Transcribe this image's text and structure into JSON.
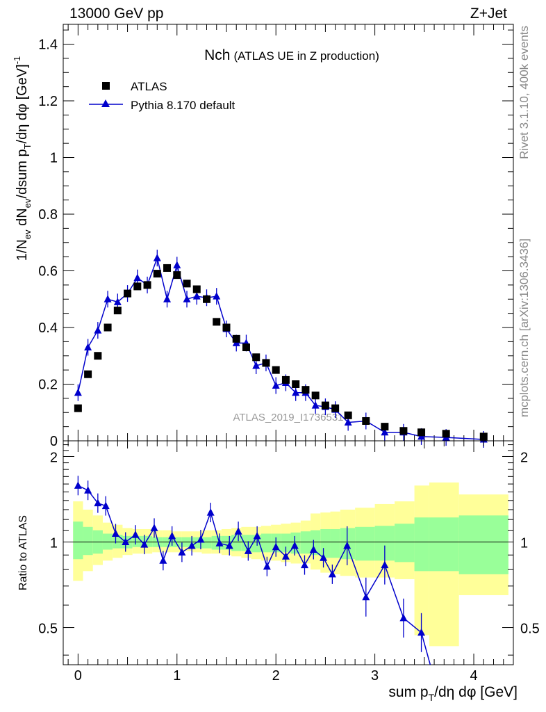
{
  "header": {
    "left": "13000 GeV pp",
    "right": "Z+Jet"
  },
  "side": {
    "rivet": "Rivet 3.1.10,  400k events",
    "mcplots": "mcplots.cern.ch [arXiv:1306.3436]"
  },
  "chart_data": [
    {
      "type": "scatter",
      "title": "Nch",
      "subtitle": "(ATLAS UE in Z production)",
      "analysis_id": "ATLAS_2019_I1736531",
      "ylabel_main": "1/N",
      "ylabel_sub1": "ev",
      "ylabel_mid": " dN",
      "ylabel_sub2": "ev",
      "ylabel_tail": "/dsum p",
      "ylabel_sub3": "T",
      "ylabel_end": "/dη dφ  [GeV]",
      "ylabel_sup": "-1",
      "xlim": [
        -0.15,
        4.4
      ],
      "ylim": [
        0,
        1.47
      ],
      "yticks": [
        0,
        0.2,
        0.4,
        0.6,
        0.8,
        1,
        1.2,
        1.4
      ],
      "ytick_labels": [
        "0",
        "0.2",
        "0.4",
        "0.6",
        "0.8",
        "1",
        "1.2",
        "1.4"
      ],
      "legend": {
        "position": "top-left",
        "entries": [
          "ATLAS",
          "Pythia 8.170 default"
        ]
      },
      "series": [
        {
          "name": "ATLAS",
          "marker": "square",
          "color": "#000000",
          "x": [
            0,
            0.1,
            0.2,
            0.3,
            0.4,
            0.5,
            0.6,
            0.7,
            0.8,
            0.9,
            1.0,
            1.1,
            1.2,
            1.3,
            1.4,
            1.5,
            1.6,
            1.7,
            1.8,
            1.9,
            2.0,
            2.1,
            2.2,
            2.3,
            2.4,
            2.5,
            2.6,
            2.73,
            2.91,
            3.1,
            3.29,
            3.47,
            3.72,
            4.1
          ],
          "y": [
            0.115,
            0.235,
            0.3,
            0.4,
            0.46,
            0.52,
            0.545,
            0.55,
            0.59,
            0.61,
            0.585,
            0.555,
            0.535,
            0.5,
            0.42,
            0.4,
            0.36,
            0.33,
            0.295,
            0.275,
            0.25,
            0.215,
            0.2,
            0.18,
            0.16,
            0.125,
            0.115,
            0.09,
            0.07,
            0.05,
            0.035,
            0.03,
            0.025,
            0.015
          ]
        },
        {
          "name": "Pythia 8.170 default",
          "marker": "triangle",
          "color": "#0000cc",
          "x": [
            0,
            0.1,
            0.2,
            0.3,
            0.4,
            0.5,
            0.6,
            0.7,
            0.8,
            0.9,
            1.0,
            1.1,
            1.2,
            1.3,
            1.4,
            1.5,
            1.6,
            1.7,
            1.8,
            1.9,
            2.0,
            2.1,
            2.2,
            2.3,
            2.4,
            2.5,
            2.6,
            2.73,
            2.91,
            3.1,
            3.29,
            3.47,
            3.72,
            4.1
          ],
          "y": [
            0.17,
            0.33,
            0.39,
            0.5,
            0.49,
            0.52,
            0.575,
            0.55,
            0.645,
            0.5,
            0.62,
            0.5,
            0.51,
            0.505,
            0.51,
            0.395,
            0.345,
            0.345,
            0.265,
            0.275,
            0.195,
            0.205,
            0.17,
            0.17,
            0.125,
            0.12,
            0.11,
            0.065,
            0.07,
            0.03,
            0.03,
            0.015,
            0.012,
            0.005
          ]
        }
      ]
    },
    {
      "type": "line",
      "ylabel": "Ratio to ATLAS",
      "xlabel": "sum p",
      "xlabel_sub": "T",
      "xlabel_tail": "/dη dφ [GeV]",
      "xlim": [
        -0.15,
        4.4
      ],
      "ylim": [
        0.37,
        2.27
      ],
      "xticks": [
        0,
        1,
        2,
        3,
        4
      ],
      "xtick_labels": [
        "0",
        "1",
        "2",
        "3",
        "4"
      ],
      "yticks": [
        0.5,
        1,
        2
      ],
      "ytick_labels": [
        "0.5",
        "1",
        "2"
      ],
      "bands": {
        "edges": [
          -0.05,
          0.05,
          0.15,
          0.25,
          0.35,
          0.45,
          0.55,
          0.65,
          0.75,
          0.85,
          0.95,
          1.05,
          1.15,
          1.25,
          1.35,
          1.45,
          1.55,
          1.65,
          1.75,
          1.85,
          1.95,
          2.05,
          2.15,
          2.25,
          2.35,
          2.45,
          2.55,
          2.65,
          2.8,
          3.0,
          3.2,
          3.4,
          3.55,
          3.85,
          4.35
        ],
        "green_lo": [
          0.87,
          0.9,
          0.91,
          0.94,
          0.95,
          0.95,
          0.96,
          0.96,
          0.96,
          0.96,
          0.96,
          0.96,
          0.95,
          0.95,
          0.94,
          0.94,
          0.93,
          0.93,
          0.92,
          0.92,
          0.92,
          0.92,
          0.91,
          0.91,
          0.9,
          0.88,
          0.88,
          0.87,
          0.86,
          0.86,
          0.85,
          0.79,
          0.79,
          0.77
        ],
        "green_hi": [
          1.18,
          1.13,
          1.1,
          1.07,
          1.06,
          1.05,
          1.05,
          1.05,
          1.04,
          1.04,
          1.04,
          1.04,
          1.04,
          1.04,
          1.05,
          1.05,
          1.06,
          1.06,
          1.06,
          1.07,
          1.07,
          1.07,
          1.08,
          1.09,
          1.1,
          1.11,
          1.11,
          1.12,
          1.13,
          1.14,
          1.16,
          1.22,
          1.22,
          1.24
        ],
        "yellow_lo": [
          0.73,
          0.79,
          0.83,
          0.86,
          0.88,
          0.9,
          0.91,
          0.91,
          0.92,
          0.92,
          0.92,
          0.93,
          0.92,
          0.91,
          0.91,
          0.9,
          0.89,
          0.88,
          0.87,
          0.86,
          0.86,
          0.85,
          0.84,
          0.84,
          0.8,
          0.78,
          0.77,
          0.76,
          0.75,
          0.75,
          0.74,
          0.47,
          0.43,
          0.65
        ],
        "yellow_hi": [
          1.39,
          1.3,
          1.24,
          1.17,
          1.15,
          1.12,
          1.11,
          1.11,
          1.1,
          1.1,
          1.09,
          1.09,
          1.09,
          1.1,
          1.1,
          1.11,
          1.12,
          1.13,
          1.13,
          1.14,
          1.15,
          1.16,
          1.17,
          1.19,
          1.26,
          1.27,
          1.28,
          1.3,
          1.32,
          1.36,
          1.39,
          1.58,
          1.62,
          1.47
        ]
      },
      "series": [
        {
          "name": "Pythia 8.170 default / ATLAS",
          "marker": "triangle",
          "color": "#0000cc",
          "x": [
            0,
            0.1,
            0.2,
            0.28,
            0.38,
            0.48,
            0.58,
            0.67,
            0.77,
            0.86,
            0.95,
            1.05,
            1.15,
            1.24,
            1.34,
            1.43,
            1.53,
            1.62,
            1.72,
            1.81,
            1.91,
            2.0,
            2.1,
            2.19,
            2.29,
            2.38,
            2.48,
            2.57,
            2.72,
            2.91,
            3.1,
            3.29,
            3.47,
            3.56
          ],
          "y": [
            1.58,
            1.52,
            1.37,
            1.34,
            1.07,
            1.0,
            1.06,
            0.98,
            1.12,
            0.86,
            1.05,
            0.92,
            0.97,
            1.02,
            1.27,
            0.99,
            0.97,
            1.09,
            0.93,
            1.05,
            0.82,
            0.96,
            0.89,
            0.97,
            0.83,
            0.94,
            0.88,
            0.77,
            0.97,
            0.64,
            0.83,
            0.54,
            0.48,
            0.3
          ]
        }
      ]
    }
  ]
}
